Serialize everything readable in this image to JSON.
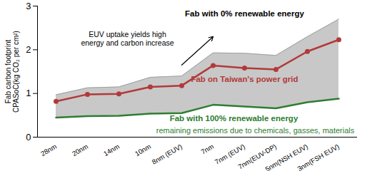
{
  "chart_data": {
    "type": "line",
    "categories": [
      "28nm",
      "20nm",
      "14nm",
      "10nm",
      "8nm (EUV)",
      "7nm",
      "7nm (EUV)",
      "7nm(EUV-DP)",
      "5nm(NSH EUV)",
      "3nm(FSH EUV)"
    ],
    "ylabel": "Fab carbon footprint\nCPASoC(kg CO₂ per cm²)",
    "ylim": [
      0,
      3
    ],
    "yticks": [
      0,
      1,
      2,
      3
    ],
    "grid": false,
    "series": [
      {
        "name": "Fab with 0% renewable energy",
        "type": "area",
        "color": "#c8c8c8",
        "values": [
          0.97,
          1.13,
          1.15,
          1.37,
          1.4,
          1.93,
          1.92,
          1.87,
          2.3,
          2.7
        ]
      },
      {
        "name": "Fab on Taiwan's power grid",
        "type": "line",
        "color": "#b23a3a",
        "marker": "circle",
        "values": [
          0.82,
          0.98,
          0.99,
          1.15,
          1.18,
          1.64,
          1.58,
          1.55,
          1.96,
          2.23
        ]
      },
      {
        "name": "Fab with 100% renewable energy",
        "type": "line",
        "color": "#2e7d32",
        "values": [
          0.45,
          0.48,
          0.49,
          0.54,
          0.55,
          0.74,
          0.7,
          0.66,
          0.8,
          0.88
        ]
      }
    ],
    "annotations": [
      {
        "text": "EUV uptake yields high\nenergy and carbon increase",
        "color": "#000000"
      },
      {
        "text": "remaining emissions due to chemicals, gasses, materials",
        "color": "#2e7d32"
      }
    ]
  }
}
